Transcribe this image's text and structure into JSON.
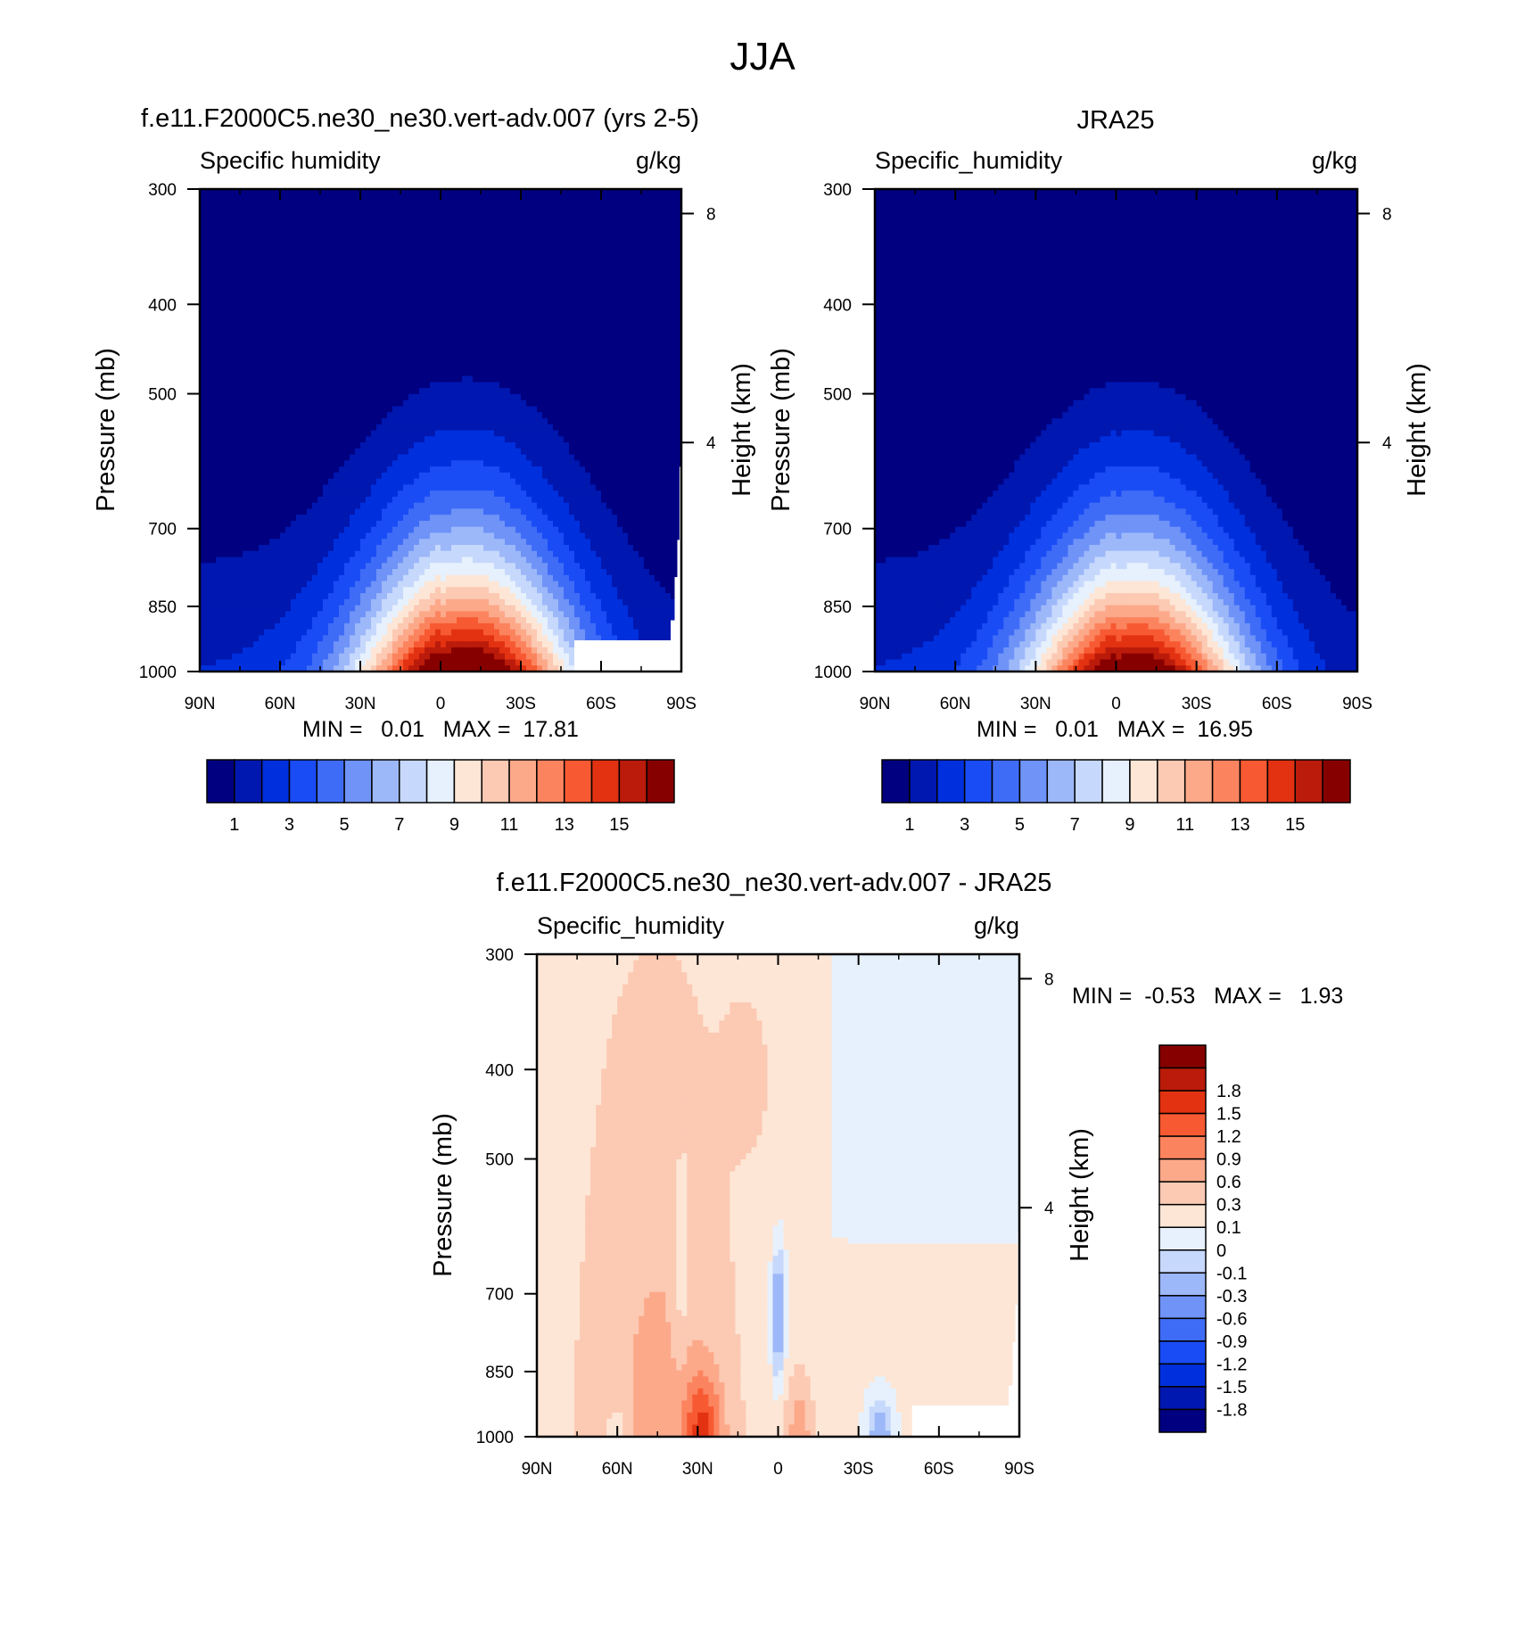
{
  "figure": {
    "title": "JJA"
  },
  "palettes": {
    "abs": [
      "#000080",
      "#0017b0",
      "#0030dd",
      "#1a4cf5",
      "#3f6cf7",
      "#6f93f7",
      "#9db8f9",
      "#c6d8fc",
      "#e6f1fd",
      "#fde6d6",
      "#fcc9b3",
      "#fca98a",
      "#fb845f",
      "#f75a32",
      "#e33212",
      "#bb1b0a",
      "#870000"
    ],
    "diff": [
      "#000080",
      "#0017b0",
      "#0030dd",
      "#1a4cf5",
      "#3f6cf7",
      "#6f93f7",
      "#9db8f9",
      "#c6d8fc",
      "#e6f1fd",
      "#fde6d6",
      "#fcc9b3",
      "#fca98a",
      "#fb845f",
      "#f75a32",
      "#e33212",
      "#bb1b0a",
      "#870000"
    ]
  },
  "chart_data": [
    {
      "type": "contour",
      "panel": "model",
      "title": "f.e11.F2000C5.ne30_ne30.vert-adv.007 (yrs 2-5)",
      "left_label": "Specific humidity",
      "right_label": "g/kg",
      "ylabel": "Pressure (mb)",
      "ylabel_right": "Height (km)",
      "x_ticks": [
        "90N",
        "60N",
        "30N",
        "0",
        "30S",
        "60S",
        "90S"
      ],
      "y_ticks": [
        300,
        400,
        500,
        700,
        850,
        1000
      ],
      "y_ticks_right": [
        8,
        4
      ],
      "ylim": [
        300,
        1000
      ],
      "stats_text": "MIN =   0.01   MAX =  17.81",
      "min": 0.01,
      "max": 17.81,
      "colorbar": {
        "orientation": "horizontal",
        "levels": [
          "1",
          "2",
          "3",
          "4",
          "5",
          "6",
          "7",
          "8",
          "9",
          "10",
          "11",
          "12",
          "13",
          "14",
          "15",
          "16"
        ],
        "tick_labels": [
          "1",
          "3",
          "5",
          "7",
          "9",
          "11",
          "13",
          "15"
        ]
      },
      "peak_lat": -10,
      "peak_value": 17.8
    },
    {
      "type": "contour",
      "panel": "obs",
      "title": "JRA25",
      "left_label": "Specific_humidity",
      "right_label": "g/kg",
      "ylabel": "Pressure (mb)",
      "ylabel_right": "Height (km)",
      "x_ticks": [
        "90N",
        "60N",
        "30N",
        "0",
        "30S",
        "60S",
        "90S"
      ],
      "y_ticks": [
        300,
        400,
        500,
        700,
        850,
        1000
      ],
      "y_ticks_right": [
        8,
        4
      ],
      "ylim": [
        300,
        1000
      ],
      "stats_text": "MIN =   0.01   MAX =  16.95",
      "min": 0.01,
      "max": 16.95,
      "colorbar": {
        "orientation": "horizontal",
        "levels": [
          "1",
          "2",
          "3",
          "4",
          "5",
          "6",
          "7",
          "8",
          "9",
          "10",
          "11",
          "12",
          "13",
          "14",
          "15",
          "16"
        ],
        "tick_labels": [
          "1",
          "3",
          "5",
          "7",
          "9",
          "11",
          "13",
          "15"
        ]
      },
      "peak_lat": -8,
      "peak_value": 16.95
    },
    {
      "type": "contour",
      "panel": "diff",
      "title": "f.e11.F2000C5.ne30_ne30.vert-adv.007 - JRA25",
      "left_label": "Specific_humidity",
      "right_label": "g/kg",
      "ylabel": "Pressure (mb)",
      "ylabel_right": "Height (km)",
      "x_ticks": [
        "90N",
        "60N",
        "30N",
        "0",
        "30S",
        "60S",
        "90S"
      ],
      "y_ticks": [
        300,
        400,
        500,
        700,
        850,
        1000
      ],
      "y_ticks_right": [
        8,
        4
      ],
      "ylim": [
        300,
        1000
      ],
      "stats_text": "MIN =  -0.53   MAX =   1.93",
      "min": -0.53,
      "max": 1.93,
      "colorbar": {
        "orientation": "vertical",
        "levels": [
          "-1.8",
          "-1.5",
          "-1.2",
          "-0.9",
          "-0.6",
          "-0.3",
          "-0.1",
          "0",
          "0.1",
          "0.3",
          "0.6",
          "0.9",
          "1.2",
          "1.5",
          "1.8"
        ]
      }
    }
  ]
}
